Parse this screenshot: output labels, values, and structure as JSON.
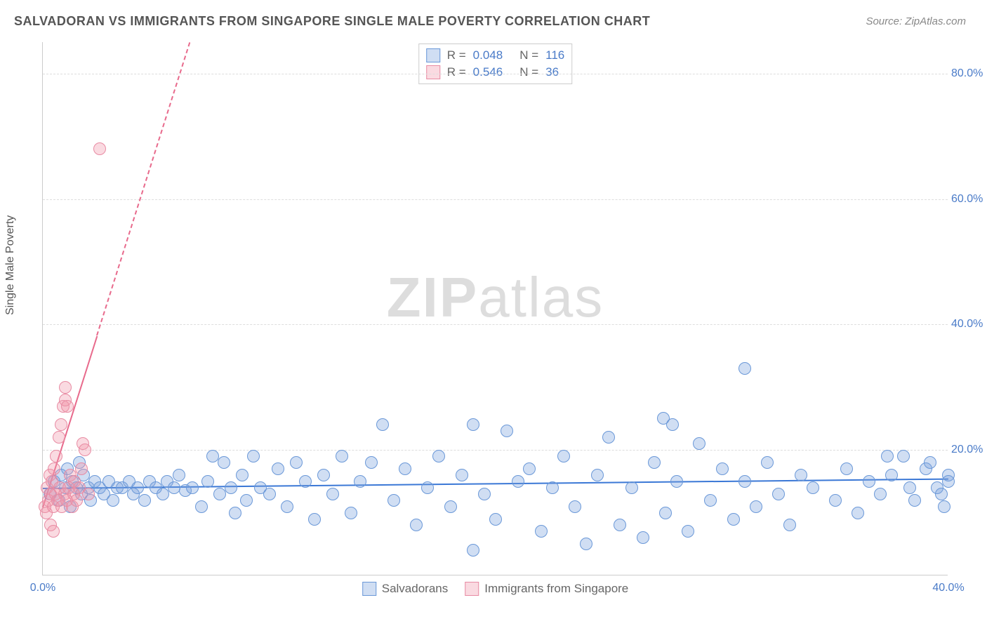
{
  "title": "SALVADORAN VS IMMIGRANTS FROM SINGAPORE SINGLE MALE POVERTY CORRELATION CHART",
  "source": "Source: ZipAtlas.com",
  "ylabel": "Single Male Poverty",
  "watermark_a": "ZIP",
  "watermark_b": "atlas",
  "chart": {
    "type": "scatter",
    "xlim": [
      0,
      40
    ],
    "ylim": [
      0,
      85
    ],
    "xticks": [
      {
        "v": 0,
        "label": "0.0%"
      },
      {
        "v": 40,
        "label": "40.0%"
      }
    ],
    "yticks": [
      {
        "v": 20,
        "label": "20.0%"
      },
      {
        "v": 40,
        "label": "40.0%"
      },
      {
        "v": 60,
        "label": "60.0%"
      },
      {
        "v": 80,
        "label": "80.0%"
      }
    ],
    "grid_color": "#dddddd",
    "background_color": "#ffffff",
    "series": [
      {
        "name": "Salvadorans",
        "fill": "rgba(120,160,220,0.35)",
        "stroke": "#6a98d8",
        "marker_r": 9,
        "R": "0.048",
        "N": "116",
        "trend": {
          "x1": 0,
          "y1": 14.0,
          "x2": 40,
          "y2": 15.5,
          "solid_until": 40,
          "color": "#3b78d6"
        },
        "points": [
          [
            0.3,
            13
          ],
          [
            0.5,
            15
          ],
          [
            0.7,
            12
          ],
          [
            0.8,
            16
          ],
          [
            1.0,
            14
          ],
          [
            1.1,
            17
          ],
          [
            1.2,
            11
          ],
          [
            1.3,
            15
          ],
          [
            1.5,
            14
          ],
          [
            1.6,
            18
          ],
          [
            1.7,
            13
          ],
          [
            1.8,
            16
          ],
          [
            2.0,
            14
          ],
          [
            2.1,
            12
          ],
          [
            2.3,
            15
          ],
          [
            2.5,
            14
          ],
          [
            2.7,
            13
          ],
          [
            2.9,
            15
          ],
          [
            3.1,
            12
          ],
          [
            3.3,
            14
          ],
          [
            3.5,
            14
          ],
          [
            3.8,
            15
          ],
          [
            4.0,
            13
          ],
          [
            4.2,
            14
          ],
          [
            4.5,
            12
          ],
          [
            4.7,
            15
          ],
          [
            5.0,
            14
          ],
          [
            5.3,
            13
          ],
          [
            5.5,
            15
          ],
          [
            5.8,
            14
          ],
          [
            6.0,
            16
          ],
          [
            6.3,
            13.5
          ],
          [
            6.6,
            14
          ],
          [
            7.0,
            11
          ],
          [
            7.3,
            15
          ],
          [
            7.5,
            19
          ],
          [
            7.8,
            13
          ],
          [
            8.0,
            18
          ],
          [
            8.3,
            14
          ],
          [
            8.5,
            10
          ],
          [
            8.8,
            16
          ],
          [
            9.0,
            12
          ],
          [
            9.3,
            19
          ],
          [
            9.6,
            14
          ],
          [
            10.0,
            13
          ],
          [
            10.4,
            17
          ],
          [
            10.8,
            11
          ],
          [
            11.2,
            18
          ],
          [
            11.6,
            15
          ],
          [
            12.0,
            9
          ],
          [
            12.4,
            16
          ],
          [
            12.8,
            13
          ],
          [
            13.2,
            19
          ],
          [
            13.6,
            10
          ],
          [
            14.0,
            15
          ],
          [
            14.5,
            18
          ],
          [
            15.0,
            24
          ],
          [
            15.5,
            12
          ],
          [
            16.0,
            17
          ],
          [
            16.5,
            8
          ],
          [
            17.0,
            14
          ],
          [
            17.5,
            19
          ],
          [
            18.0,
            11
          ],
          [
            18.5,
            16
          ],
          [
            19.0,
            24
          ],
          [
            19.5,
            13
          ],
          [
            20.0,
            9
          ],
          [
            20.5,
            23
          ],
          [
            21.0,
            15
          ],
          [
            21.5,
            17
          ],
          [
            22.0,
            7
          ],
          [
            22.5,
            14
          ],
          [
            23.0,
            19
          ],
          [
            23.5,
            11
          ],
          [
            24.0,
            5
          ],
          [
            24.5,
            16
          ],
          [
            25.0,
            22
          ],
          [
            25.5,
            8
          ],
          [
            26.0,
            14
          ],
          [
            26.5,
            6
          ],
          [
            27.0,
            18
          ],
          [
            27.4,
            25
          ],
          [
            27.5,
            10
          ],
          [
            27.8,
            24
          ],
          [
            28.0,
            15
          ],
          [
            28.5,
            7
          ],
          [
            29.0,
            21
          ],
          [
            29.5,
            12
          ],
          [
            30.0,
            17
          ],
          [
            30.5,
            9
          ],
          [
            31.0,
            33
          ],
          [
            31.0,
            15
          ],
          [
            31.5,
            11
          ],
          [
            32.0,
            18
          ],
          [
            32.5,
            13
          ],
          [
            33.0,
            8
          ],
          [
            33.5,
            16
          ],
          [
            34.0,
            14
          ],
          [
            35.0,
            12
          ],
          [
            35.5,
            17
          ],
          [
            36.0,
            10
          ],
          [
            36.5,
            15
          ],
          [
            37.0,
            13
          ],
          [
            37.3,
            19
          ],
          [
            37.5,
            16
          ],
          [
            38.0,
            19
          ],
          [
            38.3,
            14
          ],
          [
            38.5,
            12
          ],
          [
            39.0,
            17
          ],
          [
            39.2,
            18
          ],
          [
            39.5,
            14
          ],
          [
            39.7,
            13
          ],
          [
            39.8,
            11
          ],
          [
            40.0,
            16
          ],
          [
            40.0,
            15
          ],
          [
            19.0,
            4
          ]
        ]
      },
      {
        "name": "Immigrants from Singapore",
        "fill": "rgba(240,150,170,0.35)",
        "stroke": "#e88ba3",
        "marker_r": 9,
        "R": "0.546",
        "N": "36",
        "trend": {
          "x1": 0,
          "y1": 11,
          "x2": 6.5,
          "y2": 85,
          "solid_until": 2.4,
          "color": "#e86a8c"
        },
        "points": [
          [
            0.1,
            11
          ],
          [
            0.15,
            10
          ],
          [
            0.2,
            14
          ],
          [
            0.25,
            12
          ],
          [
            0.3,
            16
          ],
          [
            0.35,
            13
          ],
          [
            0.4,
            15
          ],
          [
            0.35,
            8
          ],
          [
            0.45,
            11
          ],
          [
            0.5,
            17
          ],
          [
            0.55,
            13
          ],
          [
            0.6,
            19
          ],
          [
            0.65,
            12
          ],
          [
            0.7,
            22
          ],
          [
            0.75,
            14
          ],
          [
            0.45,
            7
          ],
          [
            0.8,
            24
          ],
          [
            0.85,
            11
          ],
          [
            0.9,
            27
          ],
          [
            0.95,
            13
          ],
          [
            1.0,
            30
          ],
          [
            1.0,
            28
          ],
          [
            1.05,
            12
          ],
          [
            1.1,
            27
          ],
          [
            1.15,
            14
          ],
          [
            1.2,
            16
          ],
          [
            1.3,
            11
          ],
          [
            1.35,
            13
          ],
          [
            1.4,
            15
          ],
          [
            1.5,
            12
          ],
          [
            1.6,
            14
          ],
          [
            1.7,
            17
          ],
          [
            1.78,
            21
          ],
          [
            1.85,
            20
          ],
          [
            2.0,
            13
          ],
          [
            2.5,
            68
          ]
        ]
      }
    ]
  },
  "stat_legend": {
    "R_label": "R =",
    "N_label": "N ="
  }
}
